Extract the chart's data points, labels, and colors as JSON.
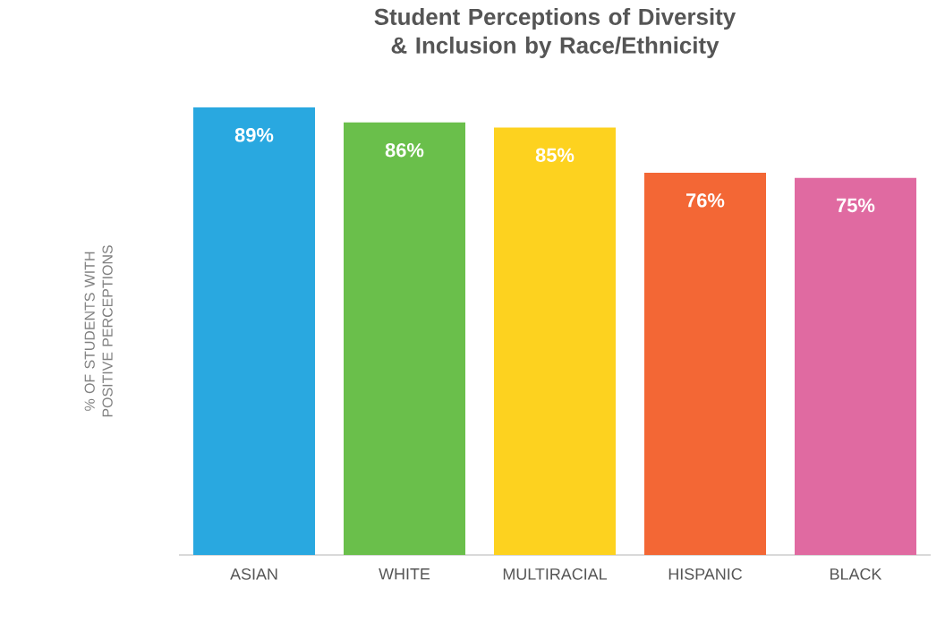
{
  "chart_data": {
    "type": "bar",
    "title": "Student Perceptions of Diversity & Inclusion by Race/Ethnicity",
    "ylabel": "% OF STUDENTS WITH POSITIVE PERCEPTIONS",
    "categories": [
      "ASIAN",
      "WHITE",
      "MULTIRACIAL",
      "HISPANIC",
      "BLACK"
    ],
    "values": [
      89,
      86,
      85,
      76,
      75
    ],
    "value_labels": [
      "89%",
      "86%",
      "85%",
      "76%",
      "75%"
    ],
    "colors": [
      "#29a8e0",
      "#6abf4b",
      "#fdd21f",
      "#f36735",
      "#e06aa1"
    ],
    "tick_labels": "x"
  }
}
